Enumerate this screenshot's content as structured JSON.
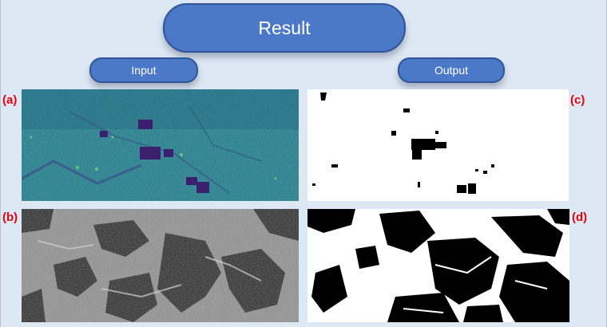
{
  "result_label": "Result",
  "input_label": "Input",
  "output_label": "Output",
  "panels": {
    "a": "(a)",
    "b": "(b)",
    "c": "(c)",
    "d": "(d)"
  },
  "colors": {
    "background": "#dde8f5",
    "pill_fill": "#4b78c7",
    "pill_border": "#2f5598",
    "panel_label": "#e8000b",
    "sar_teal": "#2d8a8e",
    "sar_purple": "#3a1f6e"
  }
}
